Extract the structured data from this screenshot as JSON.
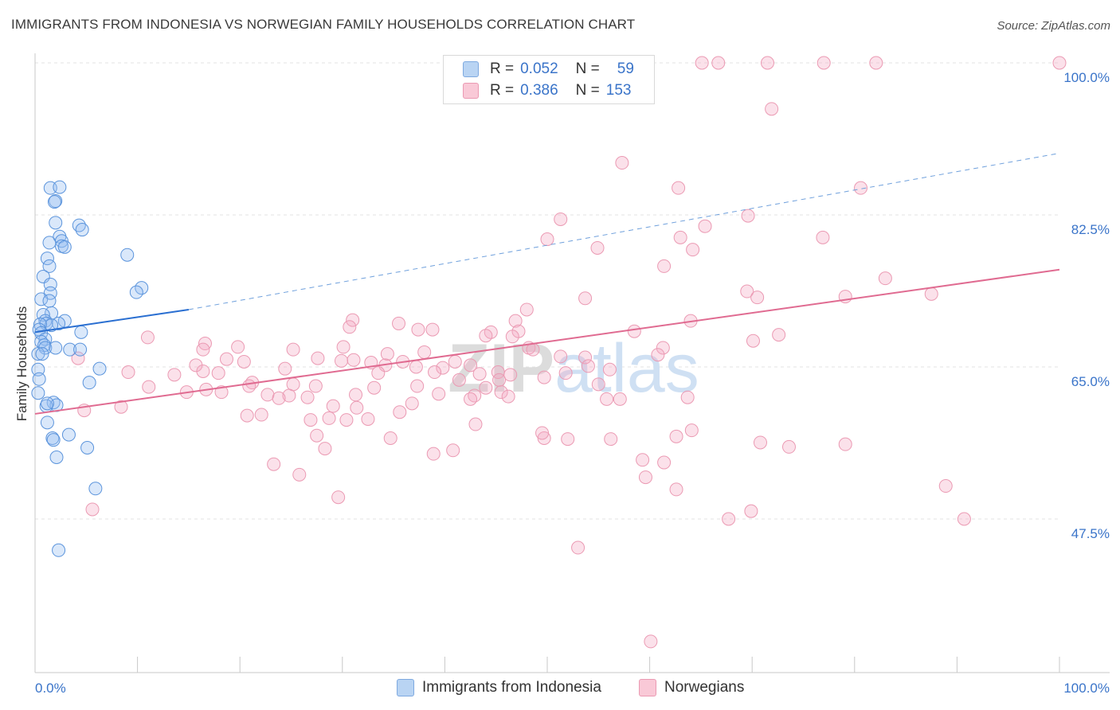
{
  "title": "IMMIGRANTS FROM INDONESIA VS NORWEGIAN FAMILY HOUSEHOLDS CORRELATION CHART",
  "source": "Source: ZipAtlas.com",
  "watermark": "ZIPatlas",
  "legend": {
    "r_label": "R =",
    "n_label": "N =",
    "rows": [
      {
        "r": "0.052",
        "n": "59",
        "color": "#7ea9e0"
      },
      {
        "r": "0.386",
        "n": "153",
        "color": "#eb9ab3"
      }
    ]
  },
  "bottom_legend": [
    "Immigrants from Indonesia",
    "Norwegians"
  ],
  "chart_data": {
    "type": "scatter",
    "title": "IMMIGRANTS FROM INDONESIA VS NORWEGIAN FAMILY HOUSEHOLDS CORRELATION CHART",
    "xlabel": "",
    "ylabel": "Family Households",
    "xlim": [
      0,
      100
    ],
    "ylim": [
      30,
      102
    ],
    "x_tick_labels": [
      "0.0%",
      "100.0%"
    ],
    "y_ticks": [
      100.0,
      82.5,
      65.0,
      47.5
    ],
    "y_tick_labels": [
      "100.0%",
      "82.5%",
      "65.0%",
      "47.5%"
    ],
    "grid": "horizontal dashed",
    "legend_placement": "top-center",
    "series": [
      {
        "name": "Immigrants from Indonesia",
        "color": "#7ea9e0",
        "r": 0.052,
        "n": 59,
        "trend": {
          "x": [
            0,
            15
          ],
          "y": [
            69.0,
            71.6
          ],
          "extended": {
            "x": [
              15,
              100
            ],
            "y": [
              71.6,
              89.6
            ]
          }
        },
        "points": [
          [
            1.5,
            85.6
          ],
          [
            2.4,
            85.7
          ],
          [
            2.0,
            84.1
          ],
          [
            1.9,
            84.0
          ],
          [
            2.0,
            81.6
          ],
          [
            4.3,
            81.3
          ],
          [
            4.6,
            80.8
          ],
          [
            2.4,
            80.0
          ],
          [
            2.6,
            79.5
          ],
          [
            1.4,
            79.3
          ],
          [
            2.6,
            78.9
          ],
          [
            2.9,
            78.8
          ],
          [
            9.0,
            77.9
          ],
          [
            1.2,
            77.5
          ],
          [
            1.4,
            76.6
          ],
          [
            0.8,
            75.4
          ],
          [
            1.5,
            74.5
          ],
          [
            10.4,
            74.1
          ],
          [
            9.9,
            73.6
          ],
          [
            1.5,
            73.5
          ],
          [
            0.6,
            72.8
          ],
          [
            1.4,
            72.6
          ],
          [
            1.6,
            71.2
          ],
          [
            0.8,
            71.0
          ],
          [
            1.0,
            70.3
          ],
          [
            2.9,
            70.3
          ],
          [
            1.1,
            70.0
          ],
          [
            2.3,
            70.0
          ],
          [
            1.6,
            69.8
          ],
          [
            0.5,
            69.9
          ],
          [
            0.4,
            69.3
          ],
          [
            4.5,
            69.0
          ],
          [
            0.6,
            68.9
          ],
          [
            1.0,
            68.2
          ],
          [
            0.6,
            67.9
          ],
          [
            0.9,
            67.5
          ],
          [
            1.0,
            67.2
          ],
          [
            2.0,
            67.2
          ],
          [
            3.4,
            67.0
          ],
          [
            4.4,
            67.0
          ],
          [
            0.3,
            66.5
          ],
          [
            0.7,
            66.5
          ],
          [
            6.3,
            64.8
          ],
          [
            0.3,
            64.7
          ],
          [
            0.4,
            63.6
          ],
          [
            5.3,
            63.2
          ],
          [
            0.3,
            62.0
          ],
          [
            1.8,
            60.9
          ],
          [
            2.1,
            60.6
          ],
          [
            1.1,
            60.5
          ],
          [
            1.2,
            60.8
          ],
          [
            1.2,
            58.6
          ],
          [
            3.3,
            57.2
          ],
          [
            1.7,
            56.8
          ],
          [
            1.8,
            56.6
          ],
          [
            5.1,
            55.7
          ],
          [
            2.1,
            54.6
          ],
          [
            5.9,
            51.0
          ],
          [
            2.3,
            43.9
          ]
        ]
      },
      {
        "name": "Norwegians",
        "color": "#eb9ab3",
        "r": 0.386,
        "n": 153,
        "trend": {
          "x": [
            0,
            100
          ],
          "y": [
            59.6,
            76.2
          ]
        },
        "points": [
          [
            65.1,
            100
          ],
          [
            66.7,
            100
          ],
          [
            71.5,
            100
          ],
          [
            77.0,
            100
          ],
          [
            82.1,
            100
          ],
          [
            100,
            100
          ],
          [
            71.9,
            94.7
          ],
          [
            57.3,
            88.5
          ],
          [
            62.8,
            85.6
          ],
          [
            80.6,
            85.6
          ],
          [
            51.3,
            82.0
          ],
          [
            69.6,
            82.4
          ],
          [
            65.4,
            81.2
          ],
          [
            50.0,
            79.7
          ],
          [
            63.0,
            79.9
          ],
          [
            76.9,
            79.9
          ],
          [
            54.9,
            78.7
          ],
          [
            64.2,
            78.5
          ],
          [
            61.4,
            76.6
          ],
          [
            83.0,
            75.2
          ],
          [
            69.5,
            73.7
          ],
          [
            87.5,
            73.4
          ],
          [
            53.7,
            72.9
          ],
          [
            70.5,
            73.0
          ],
          [
            79.1,
            73.1
          ],
          [
            48.0,
            71.6
          ],
          [
            46.9,
            70.3
          ],
          [
            31.0,
            70.4
          ],
          [
            35.5,
            70.0
          ],
          [
            30.7,
            69.6
          ],
          [
            64.0,
            70.3
          ],
          [
            37.4,
            69.3
          ],
          [
            38.8,
            69.3
          ],
          [
            47.2,
            69.1
          ],
          [
            44.5,
            69.0
          ],
          [
            58.5,
            69.1
          ],
          [
            72.6,
            68.7
          ],
          [
            44.0,
            68.6
          ],
          [
            46.6,
            68.5
          ],
          [
            11.0,
            68.4
          ],
          [
            70.1,
            68.0
          ],
          [
            16.6,
            67.7
          ],
          [
            30.1,
            67.3
          ],
          [
            48.2,
            67.2
          ],
          [
            19.8,
            67.3
          ],
          [
            48.6,
            67.0
          ],
          [
            16.4,
            67.0
          ],
          [
            25.2,
            67.0
          ],
          [
            61.3,
            67.2
          ],
          [
            34.4,
            66.5
          ],
          [
            38.0,
            66.7
          ],
          [
            51.3,
            66.2
          ],
          [
            60.8,
            66.4
          ],
          [
            53.7,
            66.1
          ],
          [
            27.6,
            66.0
          ],
          [
            4.2,
            66.0
          ],
          [
            18.7,
            65.9
          ],
          [
            31.1,
            65.8
          ],
          [
            29.9,
            65.7
          ],
          [
            35.9,
            65.6
          ],
          [
            20.4,
            65.6
          ],
          [
            41.0,
            65.6
          ],
          [
            32.8,
            65.5
          ],
          [
            15.7,
            65.2
          ],
          [
            34.2,
            65.2
          ],
          [
            42.5,
            65.2
          ],
          [
            54.0,
            65.1
          ],
          [
            37.2,
            65.0
          ],
          [
            39.8,
            64.9
          ],
          [
            24.4,
            64.8
          ],
          [
            56.1,
            64.7
          ],
          [
            16.4,
            64.5
          ],
          [
            45.2,
            64.4
          ],
          [
            9.1,
            64.4
          ],
          [
            17.9,
            64.3
          ],
          [
            51.8,
            64.3
          ],
          [
            33.5,
            64.3
          ],
          [
            39.0,
            64.4
          ],
          [
            43.4,
            64.2
          ],
          [
            13.6,
            64.1
          ],
          [
            46.4,
            64.1
          ],
          [
            49.7,
            63.8
          ],
          [
            45.3,
            63.5
          ],
          [
            21.2,
            63.2
          ],
          [
            41.4,
            63.5
          ],
          [
            55.0,
            63.0
          ],
          [
            25.2,
            63.0
          ],
          [
            27.4,
            62.8
          ],
          [
            37.3,
            62.8
          ],
          [
            20.9,
            62.8
          ],
          [
            33.1,
            62.6
          ],
          [
            16.7,
            62.4
          ],
          [
            11.1,
            62.7
          ],
          [
            44.0,
            62.6
          ],
          [
            45.5,
            62.1
          ],
          [
            18.2,
            62.1
          ],
          [
            39.4,
            61.9
          ],
          [
            31.3,
            61.8
          ],
          [
            24.8,
            61.7
          ],
          [
            42.9,
            61.7
          ],
          [
            22.7,
            61.8
          ],
          [
            46.2,
            61.6
          ],
          [
            55.8,
            61.3
          ],
          [
            63.7,
            61.5
          ],
          [
            26.6,
            61.5
          ],
          [
            23.8,
            61.4
          ],
          [
            36.8,
            60.8
          ],
          [
            57.1,
            61.3
          ],
          [
            42.5,
            61.3
          ],
          [
            29.1,
            60.5
          ],
          [
            31.4,
            60.3
          ],
          [
            8.4,
            60.4
          ],
          [
            35.6,
            59.8
          ],
          [
            22.1,
            59.5
          ],
          [
            20.7,
            59.4
          ],
          [
            28.7,
            59.1
          ],
          [
            32.5,
            59.0
          ],
          [
            26.9,
            58.9
          ],
          [
            30.4,
            58.9
          ],
          [
            64.1,
            57.7
          ],
          [
            43.0,
            58.4
          ],
          [
            27.5,
            57.1
          ],
          [
            62.6,
            57.0
          ],
          [
            52.0,
            56.7
          ],
          [
            56.2,
            56.7
          ],
          [
            34.7,
            56.8
          ],
          [
            49.7,
            56.8
          ],
          [
            49.5,
            57.4
          ],
          [
            70.8,
            56.3
          ],
          [
            79.1,
            56.1
          ],
          [
            38.9,
            55.0
          ],
          [
            73.6,
            55.8
          ],
          [
            59.3,
            54.3
          ],
          [
            23.3,
            53.8
          ],
          [
            25.8,
            52.6
          ],
          [
            59.6,
            52.3
          ],
          [
            62.6,
            50.9
          ],
          [
            29.6,
            50.0
          ],
          [
            88.9,
            51.3
          ],
          [
            67.7,
            47.5
          ],
          [
            69.9,
            48.4
          ],
          [
            40.8,
            55.4
          ],
          [
            28.3,
            55.6
          ],
          [
            61.4,
            54.0
          ],
          [
            53.0,
            44.2
          ],
          [
            60.1,
            33.4
          ],
          [
            90.7,
            47.5
          ],
          [
            5.6,
            48.6
          ],
          [
            4.8,
            60.0
          ],
          [
            14.8,
            62.1
          ]
        ]
      }
    ]
  }
}
